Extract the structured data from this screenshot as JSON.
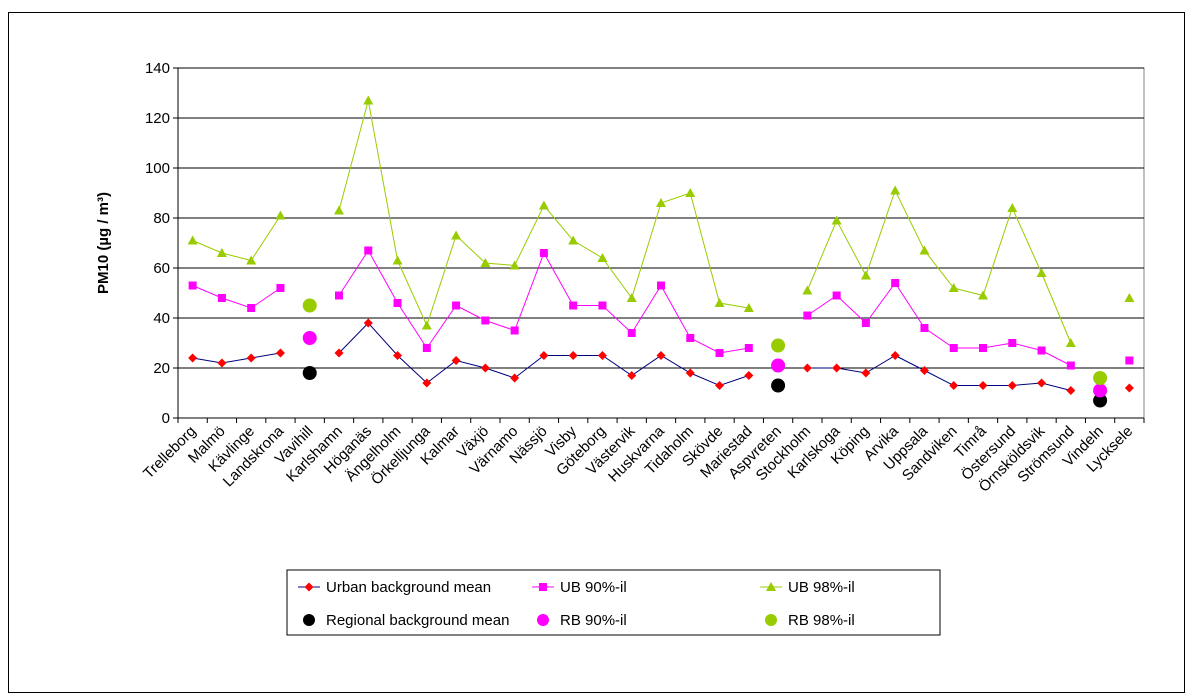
{
  "chart_data": {
    "type": "line",
    "ylabel": "PM10 (µg / m³)",
    "ylim": [
      0,
      140
    ],
    "yticks": [
      0,
      20,
      40,
      60,
      80,
      100,
      120,
      140
    ],
    "grid": true,
    "legend_position": "bottom",
    "categories": [
      "Trelleborg",
      "Malmö",
      "Kävlinge",
      "Landskrona",
      "Vavihill",
      "Karlshamn",
      "Höganäs",
      "Ängelholm",
      "Örkelljunga",
      "Kalmar",
      "Växjö",
      "Värnamo",
      "Nässjö",
      "Visby",
      "Göteborg",
      "Västervik",
      "Huskvarna",
      "Tidaholm",
      "Skövde",
      "Mariestad",
      "Aspvreten",
      "Stockholm",
      "Karlskoga",
      "Köping",
      "Arvika",
      "Uppsala",
      "Sandviken",
      "Timrå",
      "Östersund",
      "Örnsköldsvik",
      "Strömsund",
      "Vindeln",
      "Lycksele"
    ],
    "series": [
      {
        "name": "Urban background mean",
        "color": "#ff0000",
        "line_color": "#000080",
        "marker": "diamond",
        "values": [
          24,
          22,
          24,
          26,
          null,
          26,
          38,
          25,
          14,
          23,
          20,
          16,
          25,
          25,
          25,
          17,
          25,
          18,
          13,
          17,
          null,
          20,
          20,
          18,
          25,
          19,
          13,
          13,
          13,
          14,
          11,
          null,
          12
        ]
      },
      {
        "name": "UB 90%-il",
        "color": "#ff00ff",
        "line_color": "#ff00ff",
        "marker": "square",
        "values": [
          53,
          48,
          44,
          52,
          null,
          49,
          67,
          46,
          28,
          45,
          39,
          35,
          66,
          45,
          45,
          34,
          53,
          32,
          26,
          28,
          null,
          41,
          49,
          38,
          54,
          36,
          28,
          28,
          30,
          27,
          21,
          null,
          23
        ]
      },
      {
        "name": "UB 98%-il",
        "color": "#99cc00",
        "line_color": "#99cc00",
        "marker": "triangle",
        "values": [
          71,
          66,
          63,
          81,
          null,
          83,
          127,
          63,
          37,
          73,
          62,
          61,
          85,
          71,
          64,
          48,
          86,
          90,
          46,
          44,
          null,
          51,
          79,
          57,
          91,
          67,
          52,
          49,
          84,
          58,
          30,
          null,
          48
        ]
      },
      {
        "name": "Regional background mean",
        "color": "#000000",
        "marker": "circle",
        "values": [
          null,
          null,
          null,
          null,
          18,
          null,
          null,
          null,
          null,
          null,
          null,
          null,
          null,
          null,
          null,
          null,
          null,
          null,
          null,
          null,
          13,
          null,
          null,
          null,
          null,
          null,
          null,
          null,
          null,
          null,
          null,
          7,
          null
        ]
      },
      {
        "name": "RB 90%-il",
        "color": "#ff00ff",
        "marker": "circle",
        "values": [
          null,
          null,
          null,
          null,
          32,
          null,
          null,
          null,
          null,
          null,
          null,
          null,
          null,
          null,
          null,
          null,
          null,
          null,
          null,
          null,
          21,
          null,
          null,
          null,
          null,
          null,
          null,
          null,
          null,
          null,
          null,
          11,
          null
        ]
      },
      {
        "name": "RB 98%-il",
        "color": "#99cc00",
        "marker": "circle",
        "values": [
          null,
          null,
          null,
          null,
          45,
          null,
          null,
          null,
          null,
          null,
          null,
          null,
          null,
          null,
          null,
          null,
          null,
          null,
          null,
          null,
          29,
          null,
          null,
          null,
          null,
          null,
          null,
          null,
          null,
          null,
          null,
          16,
          null
        ]
      }
    ]
  }
}
